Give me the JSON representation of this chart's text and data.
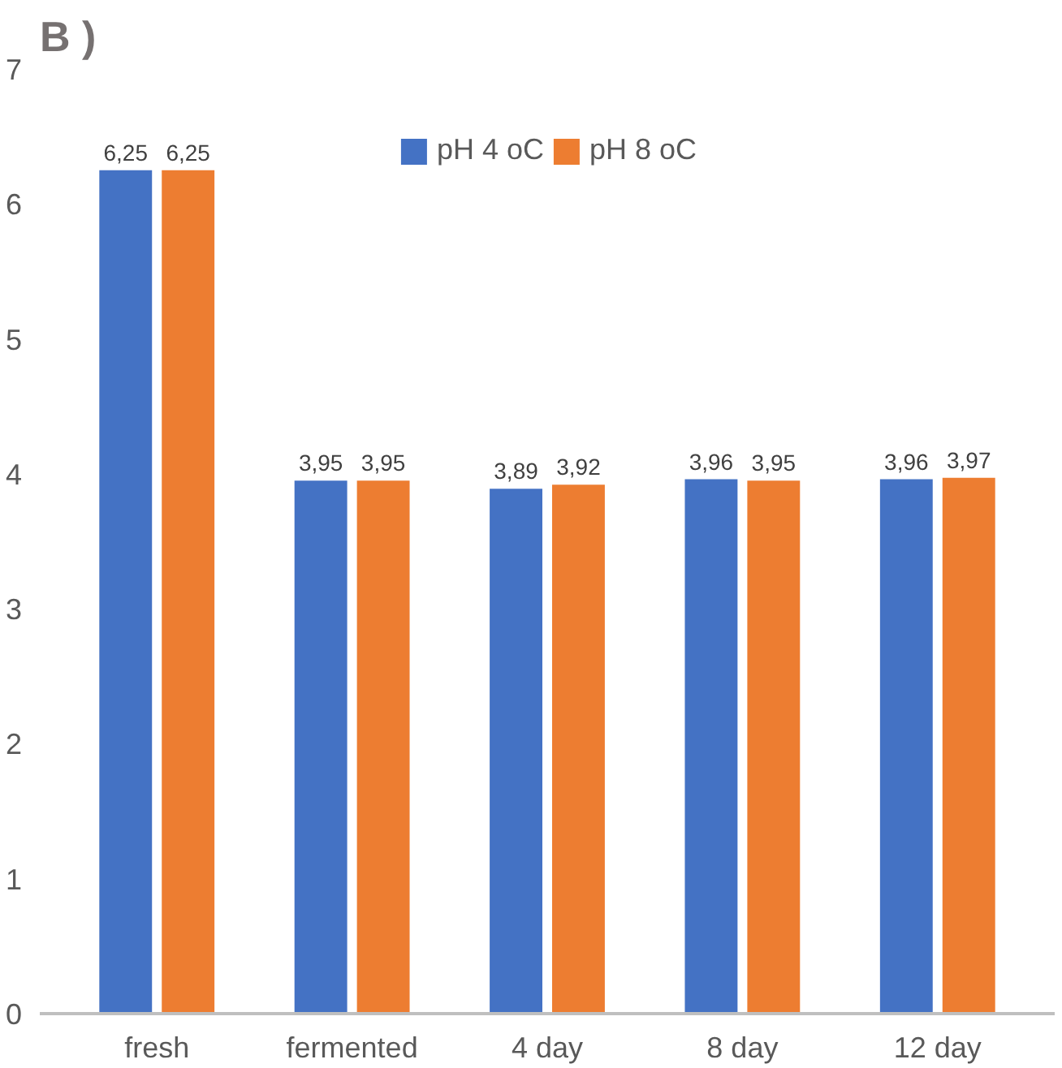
{
  "chart_data": {
    "type": "bar",
    "title": "B )",
    "categories": [
      "fresh",
      "fermented",
      "4 day",
      "8 day",
      "12 day"
    ],
    "series": [
      {
        "name": "pH 4 oC",
        "color": "#4472c4",
        "values": [
          6.25,
          3.95,
          3.89,
          3.96,
          3.96
        ],
        "value_labels": [
          "6,25",
          "3,95",
          "3,89",
          "3,96",
          "3,96"
        ]
      },
      {
        "name": "pH 8 oC",
        "color": "#ed7d31",
        "values": [
          6.25,
          3.95,
          3.92,
          3.95,
          3.97
        ],
        "value_labels": [
          "6,25",
          "3,95",
          "3,92",
          "3,95",
          "3,97"
        ]
      }
    ],
    "ylim": [
      0,
      7
    ],
    "yticks": [
      0,
      1,
      2,
      3,
      4,
      5,
      6,
      7
    ],
    "grid": false,
    "legend": "top"
  }
}
